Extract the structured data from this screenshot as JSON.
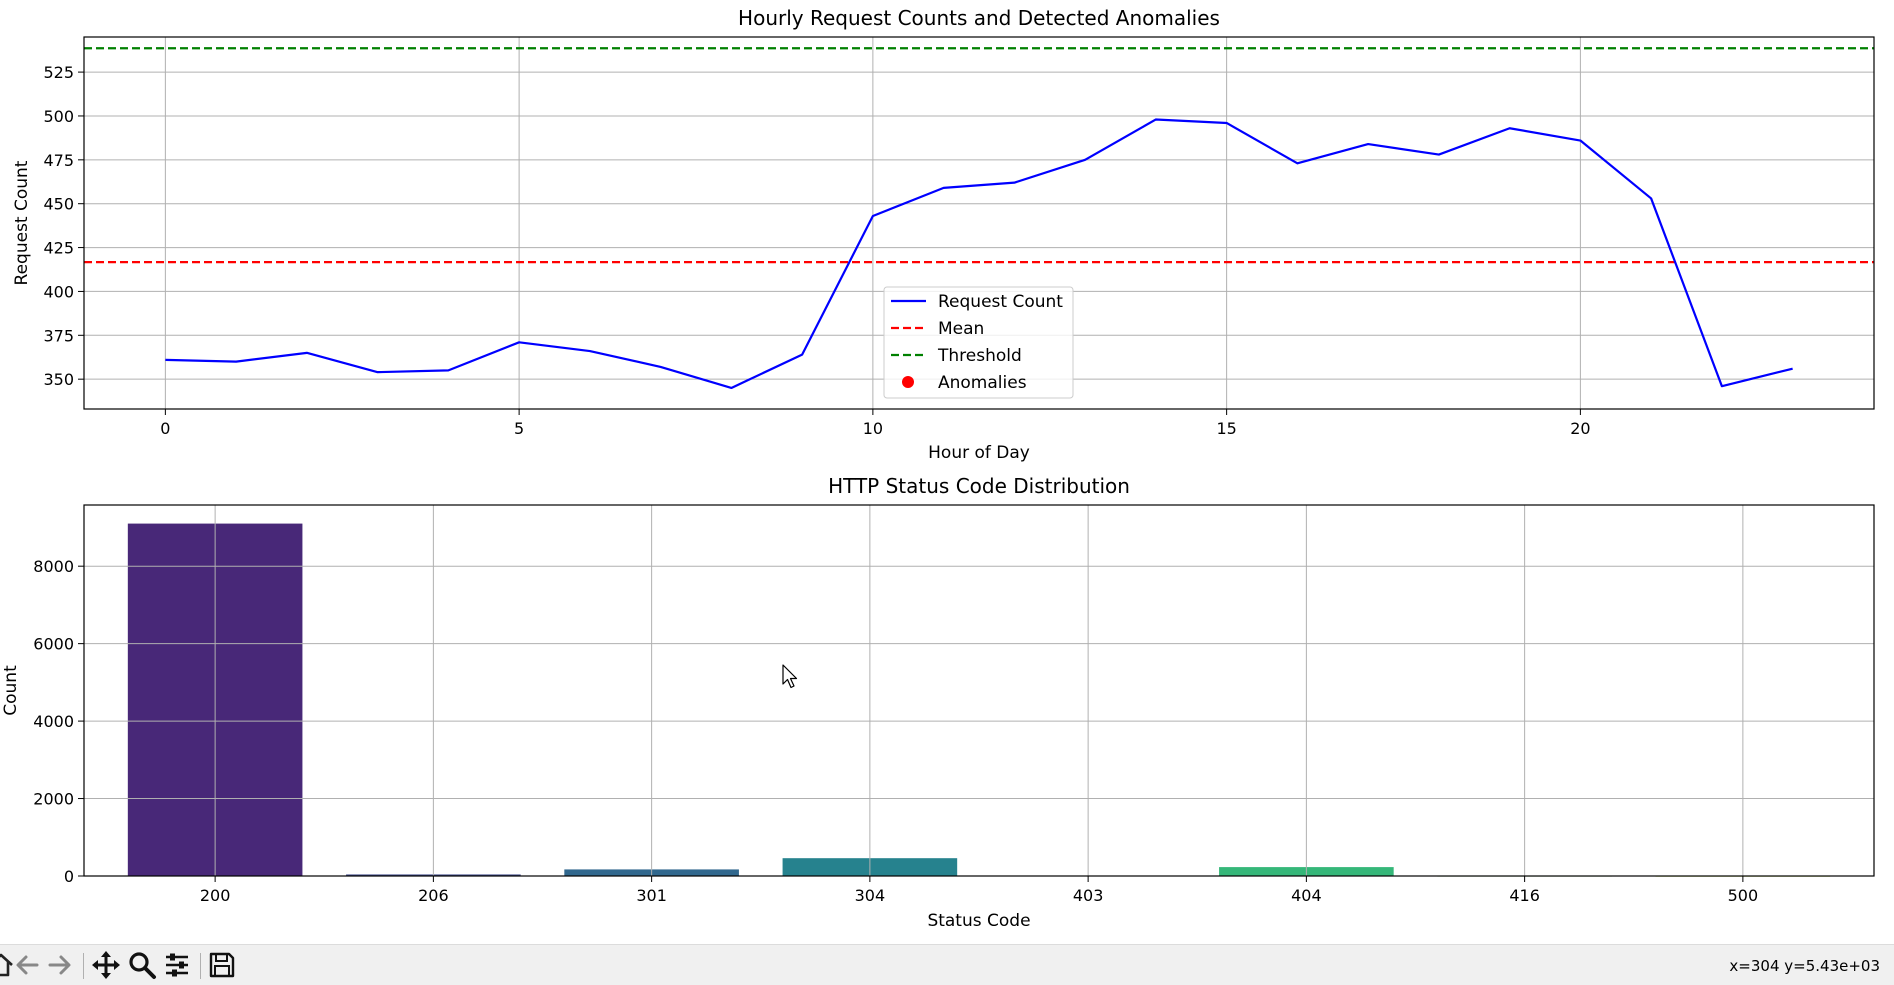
{
  "toolbar": {
    "coords_text": "x=304 y=5.43e+03",
    "buttons": [
      "home-icon",
      "back-arrow-icon",
      "forward-arrow-icon",
      "pan-icon",
      "zoom-icon",
      "configure-subplots-icon",
      "save-icon"
    ]
  },
  "colors": {
    "line": "#0000ff",
    "mean": "#ff0000",
    "threshold": "#008000",
    "anomalies": "#ff0000",
    "bars": [
      "#482878",
      "#3e4989",
      "#31688e",
      "#26828e",
      "#1f9e89",
      "#35b779",
      "#6ece58",
      "#b5de2b"
    ]
  },
  "chart_data": [
    {
      "type": "line",
      "title": "Hourly Request Counts and Detected Anomalies",
      "xlabel": "Hour of Day",
      "ylabel": "Request Count",
      "xlim": [
        -1.15,
        24.15
      ],
      "ylim": [
        333,
        545
      ],
      "xticks": [
        0,
        5,
        10,
        15,
        20
      ],
      "yticks": [
        350,
        375,
        400,
        425,
        450,
        475,
        500,
        525
      ],
      "grid": true,
      "legend_placement": "center",
      "x": [
        0,
        1,
        2,
        3,
        4,
        5,
        6,
        7,
        8,
        9,
        10,
        11,
        12,
        13,
        14,
        15,
        16,
        17,
        18,
        19,
        20,
        21,
        22,
        23
      ],
      "series": [
        {
          "name": "Request Count",
          "values": [
            361,
            360,
            365,
            354,
            355,
            371,
            366,
            357,
            345,
            364,
            443,
            459,
            462,
            475,
            498,
            496,
            473,
            484,
            478,
            493,
            486,
            453,
            346,
            356
          ]
        }
      ],
      "mean": 416.7,
      "threshold": 538.6,
      "legend": [
        "Request Count",
        "Mean",
        "Threshold",
        "Anomalies"
      ],
      "anomalies": []
    },
    {
      "type": "bar",
      "title": "HTTP Status Code Distribution",
      "xlabel": "Status Code",
      "ylabel": "Count",
      "categories": [
        "200",
        "206",
        "301",
        "304",
        "403",
        "404",
        "416",
        "500"
      ],
      "values": [
        9100,
        40,
        170,
        460,
        8,
        230,
        6,
        4
      ],
      "ylim": [
        0,
        9580
      ],
      "yticks": [
        0,
        2000,
        4000,
        6000,
        8000
      ],
      "grid": true
    }
  ]
}
